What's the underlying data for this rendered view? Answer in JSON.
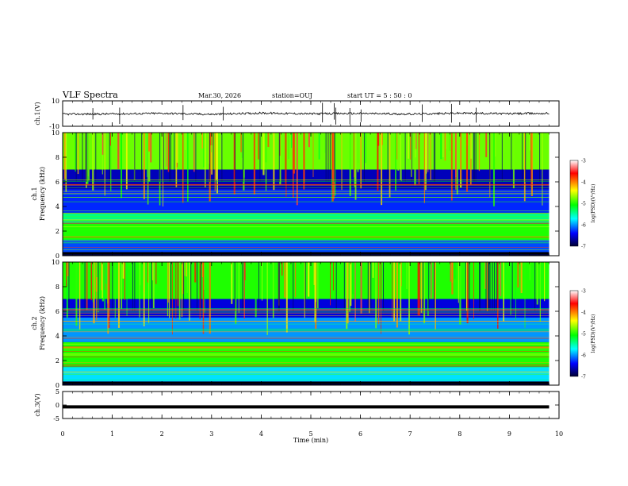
{
  "header": {
    "title": "VLF Spectra",
    "date": "Mar.30, 2026",
    "station": "station=OUJ",
    "start": "start  UT =  5 : 50 : 0"
  },
  "colorbar": {
    "label": "log(PSD)(V²/Hz)",
    "ticks": [
      "-3",
      "-4",
      "-5",
      "-6",
      "-7"
    ],
    "colors": [
      "#ffffff",
      "#ff0000",
      "#ffff00",
      "#00ff00",
      "#00ffff",
      "#0000ff",
      "#000033"
    ]
  },
  "chart_data": [
    {
      "type": "line",
      "name": "ch1-waveform",
      "ylabel": "ch.1(V)",
      "ylim": [
        -10,
        10
      ],
      "ytick_labels": [
        "10",
        "-10"
      ],
      "x": [
        0,
        1,
        2,
        3,
        4,
        5,
        6,
        7,
        8,
        9,
        9.8
      ],
      "y": [
        -0.5,
        -0.3,
        0.2,
        -0.6,
        0.4,
        -0.2,
        0.1,
        -0.4,
        0.3,
        -0.1,
        0.2
      ]
    },
    {
      "type": "heatmap",
      "name": "ch1-spectrogram",
      "ylabel": "ch.1\nFrequency (kHz)",
      "ylim": [
        0,
        10
      ],
      "ytick_labels": [
        "0",
        "2",
        "4",
        "6",
        "8",
        "10"
      ],
      "xlim": [
        0,
        9.8
      ],
      "zlim": [
        -7,
        -3
      ],
      "bands": [
        {
          "f0": 0.0,
          "f1": 0.3,
          "z": -7.0
        },
        {
          "f0": 0.3,
          "f1": 1.3,
          "z": -6.2
        },
        {
          "f0": 1.3,
          "f1": 2.6,
          "z": -5.0
        },
        {
          "f0": 2.6,
          "f1": 3.5,
          "z": -5.4
        },
        {
          "f0": 3.5,
          "f1": 5.4,
          "z": -6.3
        },
        {
          "f0": 5.4,
          "f1": 7.0,
          "z": -6.6
        },
        {
          "f0": 7.0,
          "f1": 10.0,
          "z": -4.8
        }
      ]
    },
    {
      "type": "heatmap",
      "name": "ch2-spectrogram",
      "ylabel": "ch.2\nFrequency (kHz)",
      "ylim": [
        0,
        10
      ],
      "ytick_labels": [
        "0",
        "2",
        "4",
        "6",
        "8",
        "10"
      ],
      "xlim": [
        0,
        9.8
      ],
      "zlim": [
        -7,
        -3
      ],
      "bands": [
        {
          "f0": 0.0,
          "f1": 0.3,
          "z": -7.0
        },
        {
          "f0": 0.3,
          "f1": 1.5,
          "z": -5.8
        },
        {
          "f0": 1.5,
          "f1": 3.5,
          "z": -5.0
        },
        {
          "f0": 3.5,
          "f1": 5.5,
          "z": -6.0
        },
        {
          "f0": 5.5,
          "f1": 7.0,
          "z": -6.5
        },
        {
          "f0": 7.0,
          "f1": 10.0,
          "z": -5.0
        }
      ]
    },
    {
      "type": "line",
      "name": "ch3-waveform",
      "ylabel": "ch.3(V)",
      "ylim": [
        -5,
        5
      ],
      "ytick_labels": [
        "5",
        "0",
        "-5"
      ],
      "x": [
        0,
        9.8
      ],
      "y": [
        -0.7,
        -0.7
      ]
    }
  ],
  "xaxis": {
    "label": "Time (min)",
    "ticks": [
      "0",
      "1",
      "2",
      "3",
      "4",
      "5",
      "6",
      "7",
      "8",
      "9",
      "10"
    ],
    "xlim": [
      0,
      10
    ]
  }
}
